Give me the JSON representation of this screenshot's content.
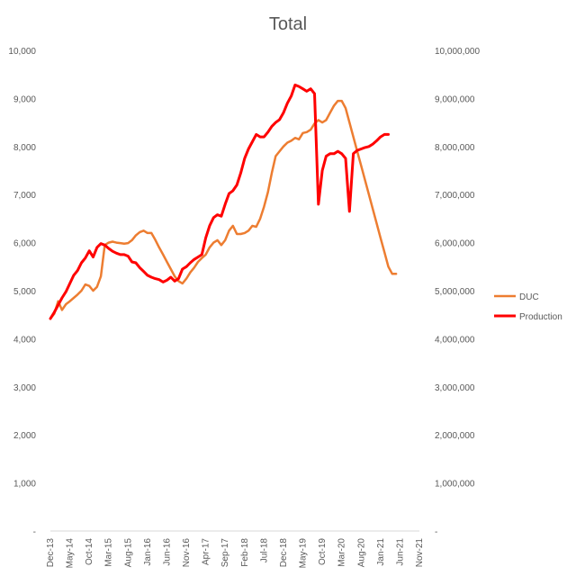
{
  "chart_data": {
    "type": "line",
    "title": "Total",
    "xlabel": "",
    "ylabel": "",
    "y2label": "",
    "ylim": [
      0,
      10000
    ],
    "y2lim": [
      0,
      10000000
    ],
    "y_ticks": [
      "-",
      "1,000",
      "2,000",
      "3,000",
      "4,000",
      "5,000",
      "6,000",
      "7,000",
      "8,000",
      "9,000",
      "10,000"
    ],
    "y2_ticks": [
      "-",
      "1,000,000",
      "2,000,000",
      "3,000,000",
      "4,000,000",
      "5,000,000",
      "6,000,000",
      "7,000,000",
      "8,000,000",
      "9,000,000",
      "10,000,000"
    ],
    "x_tick_labels": [
      "Dec-13",
      "May-14",
      "Oct-14",
      "Mar-15",
      "Aug-15",
      "Jan-16",
      "Jun-16",
      "Nov-16",
      "Apr-17",
      "Sep-17",
      "Feb-18",
      "Jul-18",
      "Dec-18",
      "May-19",
      "Oct-19",
      "Mar-20",
      "Aug-20",
      "Jan-21",
      "Jun-21",
      "Nov-21"
    ],
    "legend_position": "right",
    "grid": false,
    "series": [
      {
        "name": "DUC",
        "axis": "left",
        "color": "#ED7D31",
        "x": [
          "Dec-13",
          "Jan-14",
          "Feb-14",
          "Mar-14",
          "Apr-14",
          "May-14",
          "Jun-14",
          "Jul-14",
          "Aug-14",
          "Sep-14",
          "Oct-14",
          "Nov-14",
          "Dec-14",
          "Jan-15",
          "Feb-15",
          "Mar-15",
          "Apr-15",
          "May-15",
          "Jun-15",
          "Jul-15",
          "Aug-15",
          "Sep-15",
          "Oct-15",
          "Nov-15",
          "Dec-15",
          "Jan-16",
          "Feb-16",
          "Mar-16",
          "Apr-16",
          "May-16",
          "Jun-16",
          "Jul-16",
          "Aug-16",
          "Sep-16",
          "Oct-16",
          "Nov-16",
          "Dec-16",
          "Jan-17",
          "Feb-17",
          "Mar-17",
          "Apr-17",
          "May-17",
          "Jun-17",
          "Jul-17",
          "Aug-17",
          "Sep-17",
          "Oct-17",
          "Nov-17",
          "Dec-17",
          "Jan-18",
          "Feb-18",
          "Mar-18",
          "Apr-18",
          "May-18",
          "Jun-18",
          "Jul-18",
          "Aug-18",
          "Sep-18",
          "Oct-18",
          "Nov-18",
          "Dec-18",
          "Jan-19",
          "Feb-19",
          "Mar-19",
          "Apr-19",
          "May-19",
          "Jun-19",
          "Jul-19",
          "Aug-19",
          "Sep-19",
          "Oct-19",
          "Nov-19",
          "Dec-19",
          "Jan-20",
          "Feb-20",
          "Mar-20",
          "Apr-20",
          "May-20",
          "Jun-20",
          "Jul-20",
          "Aug-20",
          "Sep-20",
          "Oct-20",
          "Nov-20",
          "Dec-20",
          "Jan-21",
          "Feb-21",
          "Mar-21",
          "Apr-21",
          "May-21",
          "Jun-21",
          "Jul-21",
          "Aug-21"
        ],
        "values": [
          4420,
          4520,
          4780,
          4600,
          4720,
          4780,
          4850,
          4920,
          5000,
          5130,
          5100,
          5000,
          5080,
          5300,
          5950,
          6000,
          6020,
          6000,
          5990,
          5980,
          5990,
          6050,
          6150,
          6220,
          6250,
          6200,
          6200,
          6060,
          5900,
          5750,
          5600,
          5450,
          5300,
          5200,
          5150,
          5250,
          5380,
          5480,
          5600,
          5680,
          5750,
          5900,
          6000,
          6050,
          5950,
          6050,
          6250,
          6350,
          6180,
          6180,
          6200,
          6250,
          6350,
          6330,
          6500,
          6750,
          7050,
          7450,
          7800,
          7900,
          8000,
          8080,
          8120,
          8180,
          8150,
          8280,
          8300,
          8350,
          8480,
          8550,
          8500,
          8550,
          8700,
          8850,
          8950,
          8950,
          8800,
          8500,
          8200,
          7900,
          7600,
          7300,
          7000,
          6700,
          6400,
          6100,
          5800,
          5500,
          5350,
          5350,
          5350,
          5350,
          5350
        ],
        "values_end_index": 89
      },
      {
        "name": "Production",
        "axis": "right",
        "color": "#FF0000",
        "x": [
          "Dec-13",
          "Jan-14",
          "Feb-14",
          "Mar-14",
          "Apr-14",
          "May-14",
          "Jun-14",
          "Jul-14",
          "Aug-14",
          "Sep-14",
          "Oct-14",
          "Nov-14",
          "Dec-14",
          "Jan-15",
          "Feb-15",
          "Mar-15",
          "Apr-15",
          "May-15",
          "Jun-15",
          "Jul-15",
          "Aug-15",
          "Sep-15",
          "Oct-15",
          "Nov-15",
          "Dec-15",
          "Jan-16",
          "Feb-16",
          "Mar-16",
          "Apr-16",
          "May-16",
          "Jun-16",
          "Jul-16",
          "Aug-16",
          "Sep-16",
          "Oct-16",
          "Nov-16",
          "Dec-16",
          "Jan-17",
          "Feb-17",
          "Mar-17",
          "Apr-17",
          "May-17",
          "Jun-17",
          "Jul-17",
          "Aug-17",
          "Sep-17",
          "Oct-17",
          "Nov-17",
          "Dec-17",
          "Jan-18",
          "Feb-18",
          "Mar-18",
          "Apr-18",
          "May-18",
          "Jun-18",
          "Jul-18",
          "Aug-18",
          "Sep-18",
          "Oct-18",
          "Nov-18",
          "Dec-18",
          "Jan-19",
          "Feb-19",
          "Mar-19",
          "Apr-19",
          "May-19",
          "Jun-19",
          "Jul-19",
          "Aug-19",
          "Sep-19",
          "Oct-19",
          "Nov-19",
          "Dec-19",
          "Jan-20",
          "Feb-20",
          "Mar-20",
          "Apr-20",
          "May-20",
          "Jun-20",
          "Jul-20",
          "Aug-20",
          "Sep-20",
          "Oct-20",
          "Nov-20",
          "Dec-20",
          "Jan-21",
          "Feb-21",
          "Mar-21",
          "Apr-21",
          "May-21",
          "Jun-21",
          "Jul-21",
          "Aug-21"
        ],
        "values": [
          4420000,
          4550000,
          4700000,
          4850000,
          4980000,
          5150000,
          5320000,
          5420000,
          5580000,
          5680000,
          5830000,
          5700000,
          5900000,
          5980000,
          5950000,
          5880000,
          5820000,
          5780000,
          5750000,
          5750000,
          5720000,
          5600000,
          5580000,
          5480000,
          5400000,
          5320000,
          5280000,
          5250000,
          5230000,
          5180000,
          5220000,
          5280000,
          5200000,
          5250000,
          5450000,
          5500000,
          5580000,
          5650000,
          5700000,
          5750000,
          6100000,
          6350000,
          6520000,
          6580000,
          6550000,
          6800000,
          7020000,
          7080000,
          7200000,
          7450000,
          7750000,
          7950000,
          8100000,
          8250000,
          8200000,
          8200000,
          8300000,
          8420000,
          8500000,
          8560000,
          8700000,
          8900000,
          9050000,
          9280000,
          9250000,
          9200000,
          9150000,
          9200000,
          9100000,
          6800000,
          7500000,
          7800000,
          7850000,
          7850000,
          7900000,
          7850000,
          7750000,
          6650000,
          7850000,
          7920000,
          7950000,
          7980000,
          8000000,
          8050000,
          8120000,
          8200000,
          8250000,
          8250000,
          8250000,
          8250000,
          8250000,
          8250000,
          8250000
        ],
        "values_end_index": 87
      }
    ]
  }
}
